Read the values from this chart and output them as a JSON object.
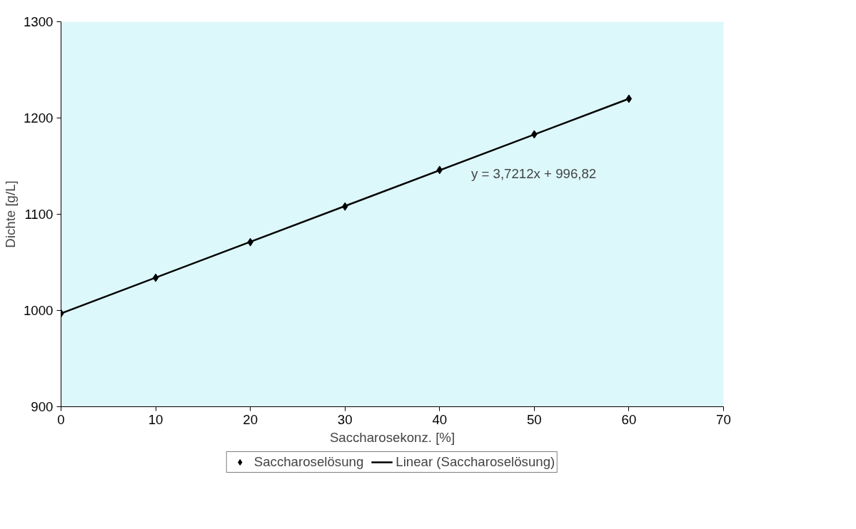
{
  "chart_data": {
    "type": "scatter",
    "xlabel": "Saccharosekonz. [%]",
    "ylabel": "Dichte [g/L]",
    "x": [
      0,
      10,
      20,
      30,
      40,
      50,
      60
    ],
    "series": [
      {
        "name": "Saccharoselösung",
        "color": "#000000",
        "marker": "diamond",
        "values": [
          997,
          1034,
          1071,
          1108,
          1146,
          1183,
          1220
        ]
      },
      {
        "name": "Linear (Saccharoselösung)",
        "type": "line",
        "color": "#000000",
        "x": [
          0,
          60
        ],
        "values": [
          997,
          1220
        ],
        "marker": "none",
        "line_style": "solid"
      }
    ],
    "annotations": [
      "y = 3,7212x + 996,82"
    ],
    "xlim": [
      0,
      70
    ],
    "xticks": [
      0,
      10,
      20,
      30,
      40,
      50,
      60,
      70
    ],
    "ylim": [
      900,
      1300
    ],
    "yticks": [
      900,
      1000,
      1100,
      1200,
      1300
    ],
    "grid": false,
    "legend": "bottom"
  }
}
